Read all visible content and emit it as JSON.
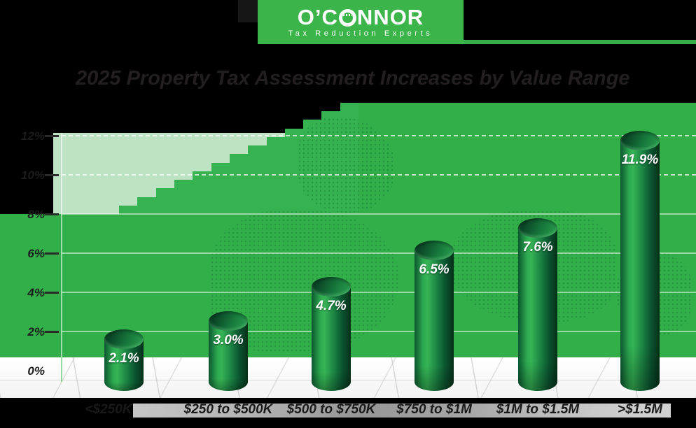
{
  "header": {
    "logo_part1": "O’C",
    "logo_part2": "NNOR",
    "tagline": "Tax Reduction Experts",
    "bar_color": "#3BB54A"
  },
  "title": {
    "text": "2025 Property Tax Assessment Increases by Value Range"
  },
  "chart_data": {
    "type": "bar",
    "style": "3d-cylinder",
    "title": "2025 Property Tax Assessment Increases by Value Range",
    "categories": [
      "<$250K",
      "$250 to $500K",
      "$500 to $750K",
      "$750 to $1M",
      "$1M to $1.5M",
      ">$1.5M"
    ],
    "values": [
      2.1,
      3.0,
      4.7,
      6.5,
      7.6,
      11.9
    ],
    "value_labels": [
      "2.1%",
      "3.0%",
      "4.7%",
      "6.5%",
      "7.6%",
      "11.9%"
    ],
    "y_ticks": [
      {
        "label": "0%",
        "value": 0
      },
      {
        "label": "2%",
        "value": 2
      },
      {
        "label": "4%",
        "value": 4
      },
      {
        "label": "6%",
        "value": 6
      },
      {
        "label": "8%",
        "value": 8
      },
      {
        "label": "10%",
        "value": 10
      },
      {
        "label": "12%",
        "value": 12
      }
    ],
    "ylim": [
      0,
      12
    ],
    "xlabel": "",
    "ylabel": "",
    "grid": "horizontal",
    "legend": "none",
    "colors": {
      "plot_bg_green": "#33AF4A",
      "plot_bg_mint": "#BDE3C4",
      "bar_bright": "#2FAE4E",
      "bar_dark": "#07331D",
      "grid_line": "rgba(255,255,255,0.5)",
      "value_label_text": "#FFFFFF",
      "axis_text": "#231F20",
      "floor": "#FFFFFF"
    }
  }
}
